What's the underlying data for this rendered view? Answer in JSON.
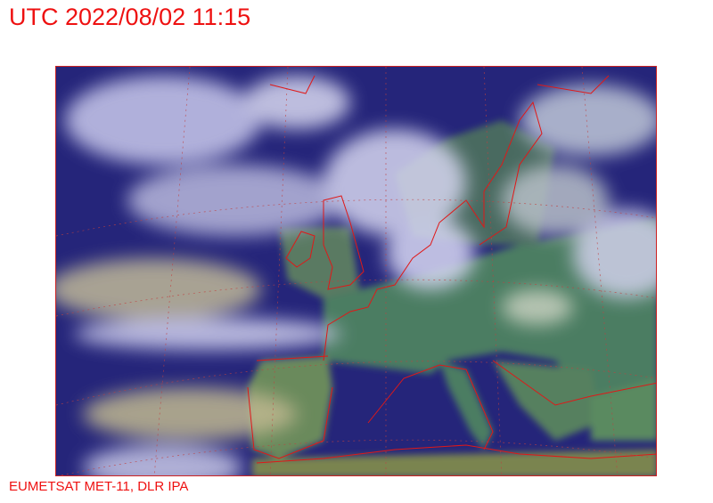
{
  "header": {
    "title": "UTC 2022/08/02 11:15"
  },
  "footer": {
    "credit": "EUMETSAT MET-11, DLR IPA"
  },
  "map": {
    "type": "satellite-image",
    "region": "Europe",
    "colors": {
      "sea": "#25257a",
      "land": "#4c7d62",
      "cloud": "#c9c9ec",
      "borders": "#e01818"
    }
  }
}
